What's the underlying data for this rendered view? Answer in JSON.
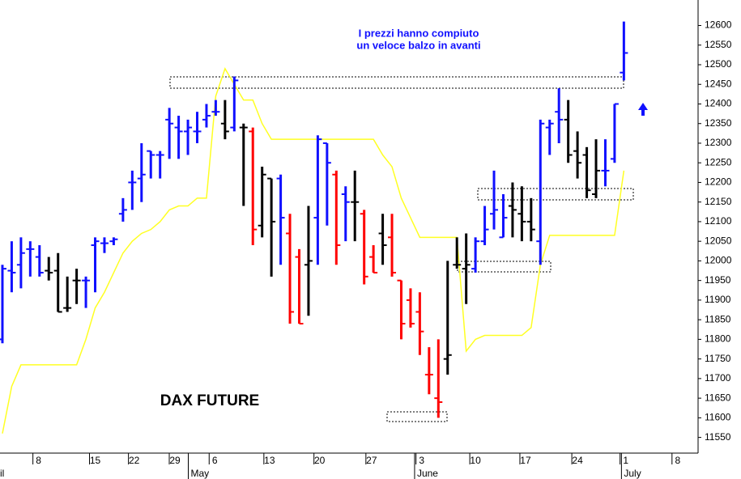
{
  "chart_data": {
    "type": "ohlc",
    "annotations": [
      "I prezzi hanno compiuto",
      "un veloce balzo in avanti",
      "DAX FUTURE"
    ],
    "open": [
      11800,
      11975,
      11990,
      12030,
      12010,
      11975,
      11975,
      11880,
      11950,
      11950,
      12040,
      12045,
      12050,
      12120,
      12200,
      12210,
      12280,
      12270,
      12360,
      12340,
      12330,
      12330,
      12360,
      12380,
      12350,
      12340,
      12340,
      12330,
      12090,
      12210,
      12210,
      12070,
      12010,
      11990,
      12110,
      12300,
      12220,
      12170,
      12150,
      12120,
      12010,
      12070,
      12060,
      11950,
      11900,
      11870,
      11710,
      11650,
      11750,
      11990,
      11980,
      11980,
      12050,
      12120,
      12060,
      12140,
      12120,
      12100,
      12050,
      12340,
      12380,
      12360,
      12280,
      12270,
      12170,
      12230,
      12260,
      12480
    ],
    "high": [
      11990,
      12050,
      12060,
      12050,
      12040,
      12010,
      12020,
      11960,
      11980,
      11960,
      12060,
      12060,
      12060,
      12160,
      12230,
      12300,
      12280,
      12280,
      12390,
      12370,
      12360,
      12380,
      12400,
      12410,
      12410,
      12470,
      12350,
      12340,
      12240,
      12210,
      12220,
      12120,
      12030,
      12140,
      12320,
      12300,
      12230,
      12190,
      12230,
      12130,
      12040,
      12120,
      12120,
      11950,
      11930,
      11920,
      11780,
      11800,
      12000,
      12060,
      12070,
      12060,
      12140,
      12230,
      12170,
      12200,
      12190,
      12160,
      12360,
      12360,
      12440,
      12410,
      12330,
      12290,
      12310,
      12310,
      12400,
      12610
    ],
    "low": [
      11790,
      11920,
      11930,
      11960,
      11960,
      11950,
      11870,
      11870,
      11890,
      11880,
      11920,
      12020,
      12040,
      12100,
      12130,
      12150,
      12210,
      12210,
      12260,
      12260,
      12270,
      12300,
      12340,
      12370,
      12310,
      12330,
      12140,
      12040,
      12060,
      11960,
      11990,
      11840,
      11840,
      11860,
      11990,
      12090,
      11990,
      12050,
      12050,
      11940,
      11970,
      11990,
      11960,
      11800,
      11830,
      11760,
      11660,
      11600,
      11710,
      11980,
      11890,
      11970,
      12040,
      12080,
      12060,
      12060,
      12050,
      12050,
      11990,
      12270,
      12300,
      12250,
      12210,
      12160,
      12160,
      12190,
      12250,
      12460
    ],
    "close": [
      11980,
      11970,
      12020,
      12030,
      11970,
      11970,
      11870,
      11880,
      11950,
      11950,
      12050,
      12045,
      12055,
      12130,
      12200,
      12220,
      12270,
      12270,
      12350,
      12330,
      12340,
      12330,
      12370,
      12380,
      12330,
      12460,
      12340,
      12080,
      12220,
      12100,
      12110,
      11870,
      11840,
      12000,
      12310,
      12250,
      12040,
      12150,
      12150,
      11960,
      11970,
      12040,
      11970,
      11840,
      11840,
      11820,
      11710,
      11640,
      11760,
      11990,
      11990,
      12050,
      12080,
      12130,
      12110,
      12130,
      12100,
      12080,
      12350,
      12350,
      12360,
      12270,
      12250,
      12180,
      12230,
      12230,
      12400,
      12530
    ],
    "bar_colors": [
      "#1010ff",
      "#1010ff",
      "#1010ff",
      "#1010ff",
      "#1010ff",
      "#000000",
      "#000000",
      "#000000",
      "#000000",
      "#1010ff",
      "#1010ff",
      "#1010ff",
      "#1010ff",
      "#1010ff",
      "#1010ff",
      "#1010ff",
      "#1010ff",
      "#1010ff",
      "#1010ff",
      "#1010ff",
      "#1010ff",
      "#1010ff",
      "#1010ff",
      "#1010ff",
      "#000000",
      "#1010ff",
      "#000000",
      "#ff0000",
      "#000000",
      "#000000",
      "#1010ff",
      "#ff0000",
      "#ff0000",
      "#000000",
      "#1010ff",
      "#1010ff",
      "#ff0000",
      "#1010ff",
      "#000000",
      "#ff0000",
      "#ff0000",
      "#000000",
      "#ff0000",
      "#ff0000",
      "#ff0000",
      "#ff0000",
      "#ff0000",
      "#ff0000",
      "#000000",
      "#000000",
      "#000000",
      "#1010ff",
      "#1010ff",
      "#1010ff",
      "#1010ff",
      "#000000",
      "#000000",
      "#000000",
      "#1010ff",
      "#1010ff",
      "#1010ff",
      "#000000",
      "#000000",
      "#000000",
      "#000000",
      "#1010ff",
      "#1010ff",
      "#1010ff"
    ],
    "overlay": {
      "color": "#ffff22",
      "values": [
        11560,
        11680,
        11735,
        11735,
        11735,
        11735,
        11735,
        11735,
        11735,
        11800,
        11880,
        11920,
        11970,
        12020,
        12050,
        12070,
        12080,
        12100,
        12130,
        12140,
        12140,
        12160,
        12160,
        12420,
        12490,
        12450,
        12410,
        12410,
        12350,
        12310,
        12310,
        12310,
        12310,
        12310,
        12310,
        12310,
        12310,
        12310,
        12310,
        12310,
        12310,
        12270,
        12240,
        12160,
        12110,
        12060,
        12060,
        12060,
        12060,
        12060,
        11770,
        11800,
        11810,
        11810,
        11810,
        11810,
        11810,
        11830,
        11990,
        12065,
        12065,
        12065,
        12065,
        12065,
        12065,
        12065,
        12065,
        12230
      ]
    },
    "ylim": [
      11510,
      12665
    ],
    "yticks": [
      11550,
      11600,
      11650,
      11700,
      11750,
      11800,
      11850,
      11900,
      11950,
      12000,
      12050,
      12100,
      12150,
      12200,
      12250,
      12300,
      12350,
      12400,
      12450,
      12500,
      12550,
      12600
    ],
    "xlim": [
      -0.26,
      75.0
    ],
    "xticks": [
      {
        "value": 3.9,
        "label": "8"
      },
      {
        "value": 10.0,
        "label": "15"
      },
      {
        "value": 14.2,
        "label": "22"
      },
      {
        "value": 18.6,
        "label": "29"
      },
      {
        "value": 22.9,
        "label": "6"
      },
      {
        "value": 28.8,
        "label": "13"
      },
      {
        "value": 34.2,
        "label": "20"
      },
      {
        "value": 39.8,
        "label": "27"
      },
      {
        "value": 45.2,
        "label": "3"
      },
      {
        "value": 51.0,
        "label": "10"
      },
      {
        "value": 56.4,
        "label": "17"
      },
      {
        "value": 62.0,
        "label": "24"
      },
      {
        "value": 67.2,
        "label": "1"
      },
      {
        "value": 72.8,
        "label": "8"
      }
    ],
    "month_labels": [
      {
        "value": -0.26,
        "label": "il"
      },
      {
        "value": 20.3,
        "label": "May"
      },
      {
        "value": 44.7,
        "label": "June"
      },
      {
        "value": 67.0,
        "label": "July"
      }
    ]
  }
}
